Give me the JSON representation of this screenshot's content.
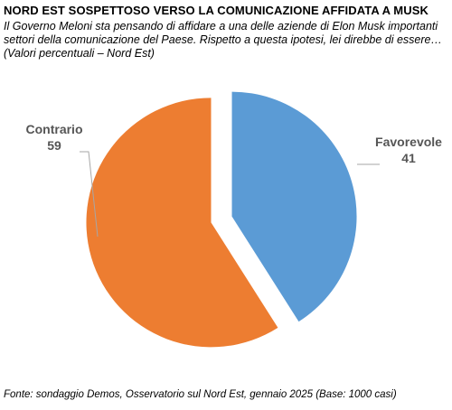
{
  "title": "NORD EST SOSPETTOSO VERSO LA COMUNICAZIONE AFFIDATA A MUSK",
  "subtitle": "Il Governo Meloni sta pensando di affidare a una delle aziende di Elon Musk importanti settori della comunicazione del Paese. Rispetto a questa ipotesi, lei direbbe di essere… (Valori percentuali – Nord Est)",
  "source": "Fonte: sondaggio Demos, Osservatorio sul Nord Est, gennaio 2025 (Base: 1000 casi)",
  "chart_data": {
    "type": "pie",
    "title": "NORD EST SOSPETTOSO VERSO LA COMUNICAZIONE AFFIDATA A MUSK",
    "slices": [
      {
        "label": "Favorevole",
        "value": 41,
        "color": "#5b9bd5"
      },
      {
        "label": "Contrario",
        "value": 59,
        "color": "#ed7d31"
      }
    ],
    "exploded": true,
    "legend": "none",
    "data_labels": "outside, with leader lines"
  }
}
